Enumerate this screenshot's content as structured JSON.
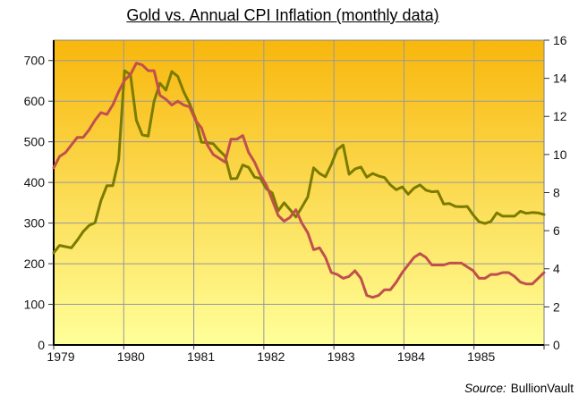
{
  "title": "Gold vs. Annual CPI Inflation (monthly data)",
  "source": {
    "label": "Source:",
    "value": "BullionVault"
  },
  "colors": {
    "gold_line": "#7B7B00",
    "cpi_line": "#C0504D",
    "plot_bg_top": "#F8B70C",
    "plot_bg_bottom": "#FFFF99",
    "gridline": "#9797A0",
    "plot_border": "#808080",
    "axis": "#000000",
    "tick": "#303030"
  },
  "chart_data": {
    "type": "line",
    "title": "Gold vs. Annual CPI Inflation (monthly data)",
    "x_unit": "month",
    "x_start": "1979-01",
    "x_end": "1985-12",
    "x_tick_labels": [
      "1979",
      "1980",
      "1981",
      "1982",
      "1983",
      "1984",
      "1985"
    ],
    "grid": true,
    "legend_position": "none",
    "background_gradient": [
      "#F8B70C",
      "#FFFF99"
    ],
    "left_axis": {
      "min": 0,
      "max": 750,
      "tick_step": 100,
      "ticks": [
        0,
        100,
        200,
        300,
        400,
        500,
        600,
        700
      ]
    },
    "right_axis": {
      "min": 0,
      "max": 16,
      "tick_step": 2,
      "ticks": [
        0,
        2,
        4,
        6,
        8,
        10,
        12,
        14,
        16
      ]
    },
    "series": [
      {
        "name": "Gold",
        "slug": "gold-line",
        "axis": "left",
        "color": "#7B7B00",
        "values": [
          227,
          245,
          242,
          239,
          258,
          279,
          294,
          301,
          355,
          392,
          392,
          455,
          675,
          665,
          553,
          517,
          514,
          600,
          644,
          627,
          673,
          661,
          623,
          594,
          557,
          499,
          498,
          495,
          479,
          465,
          409,
          410,
          443,
          437,
          413,
          410,
          384,
          374,
          330,
          350,
          333,
          315,
          339,
          364,
          436,
          422,
          414,
          444,
          481,
          492,
          420,
          433,
          438,
          413,
          422,
          416,
          412,
          394,
          382,
          389,
          371,
          386,
          394,
          381,
          377,
          378,
          347,
          348,
          341,
          340,
          341,
          320,
          303,
          299,
          304,
          325,
          317,
          317,
          317,
          329,
          324,
          326,
          325,
          321
        ]
      },
      {
        "name": "Annual CPI Inflation",
        "slug": "cpi-line",
        "axis": "right",
        "color": "#C0504D",
        "values": [
          9.3,
          9.9,
          10.1,
          10.5,
          10.9,
          10.9,
          11.3,
          11.8,
          12.2,
          12.1,
          12.6,
          13.3,
          13.9,
          14.2,
          14.8,
          14.7,
          14.4,
          14.4,
          13.1,
          12.9,
          12.6,
          12.8,
          12.6,
          12.5,
          11.8,
          11.4,
          10.5,
          10.0,
          9.8,
          9.6,
          10.8,
          10.8,
          11.0,
          10.1,
          9.6,
          8.9,
          8.4,
          7.6,
          6.8,
          6.5,
          6.7,
          7.1,
          6.4,
          5.9,
          5.0,
          5.1,
          4.6,
          3.8,
          3.7,
          3.5,
          3.6,
          3.9,
          3.5,
          2.6,
          2.5,
          2.6,
          2.9,
          2.9,
          3.3,
          3.8,
          4.2,
          4.6,
          4.8,
          4.6,
          4.2,
          4.2,
          4.2,
          4.3,
          4.3,
          4.3,
          4.1,
          3.9,
          3.5,
          3.5,
          3.7,
          3.7,
          3.8,
          3.8,
          3.6,
          3.3,
          3.2,
          3.2,
          3.5,
          3.8
        ]
      }
    ]
  }
}
